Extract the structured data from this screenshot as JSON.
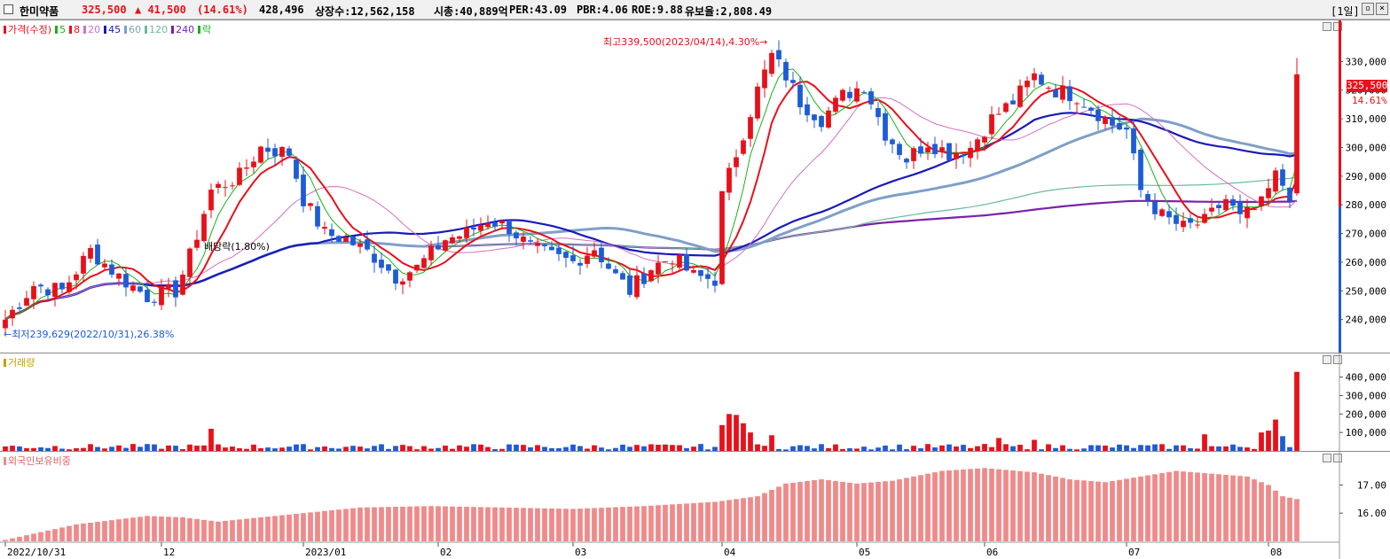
{
  "header": {
    "name": "한미약품",
    "price": "325,500",
    "change": "▲ 41,500",
    "change_pct": "(14.61%)",
    "volume": "428,496",
    "listed": "상장수:12,562,158",
    "mcap": "시총:40,889억",
    "per": "PER:43.09",
    "pbr": "PBR:4.06",
    "roe": "ROE:9.88",
    "reserve": "유보율:2,808.49",
    "period": "[1일]"
  },
  "colors": {
    "up": "#e8101a",
    "down": "#1e5bd6",
    "ma5": "#17b317",
    "ma8": "#e8101a",
    "ma20": "#d46fc4",
    "ma45": "#1a1ab8",
    "ma60": "#7f9fc8",
    "ma120": "#6cb9a0",
    "ma240": "#7a21a8",
    "volume": "#c8a000",
    "foreign": "#f08a8a"
  },
  "legend": [
    {
      "label": "가격(수정)",
      "color": "#e8101a"
    },
    {
      "label": "5",
      "color": "#17b317"
    },
    {
      "label": "8",
      "color": "#e8101a"
    },
    {
      "label": "20",
      "color": "#d46fc4"
    },
    {
      "label": "45",
      "color": "#1a1ab8"
    },
    {
      "label": "60",
      "color": "#7f9fc8"
    },
    {
      "label": "120",
      "color": "#6cb9a0"
    },
    {
      "label": "240",
      "color": "#7a21a8"
    },
    {
      "label": "락",
      "color": "#17b317"
    }
  ],
  "volume_label": "거래량",
  "foreign_label": "외국인보유비중",
  "annotations": {
    "high": "최고339,500(2023/04/14),4.30%→",
    "low": "←최저239,629(2022/10/31),26.38%",
    "dividend": "배당락(1.80%)"
  },
  "price_tag": {
    "price": "325,500",
    "pct": "14.61%"
  },
  "chart_data": {
    "type": "candlestick",
    "price_ylim": [
      230000,
      340000
    ],
    "price_ticks": [
      "240,000",
      "250,000",
      "260,000",
      "270,000",
      "280,000",
      "290,000",
      "300,000",
      "310,000",
      "320,000",
      "330,000"
    ],
    "volume_ylim": [
      0,
      480000
    ],
    "volume_ticks": [
      "100,000",
      "200,000",
      "300,000",
      "400,000"
    ],
    "foreign_ylim": [
      15.0,
      17.8
    ],
    "foreign_ticks": [
      "16.00",
      "17.00"
    ],
    "x_labels": [
      {
        "i": 0,
        "t": "2022/10/31"
      },
      {
        "i": 22,
        "t": "12"
      },
      {
        "i": 42,
        "t": "2023/01"
      },
      {
        "i": 61,
        "t": "02"
      },
      {
        "i": 80,
        "t": "03"
      },
      {
        "i": 101,
        "t": "04"
      },
      {
        "i": 120,
        "t": "05"
      },
      {
        "i": 138,
        "t": "06"
      },
      {
        "i": 158,
        "t": "07"
      },
      {
        "i": 178,
        "t": "08"
      }
    ],
    "n": 183,
    "close_keypoints": [
      [
        0,
        240000
      ],
      [
        4,
        252000
      ],
      [
        8,
        250000
      ],
      [
        12,
        264000
      ],
      [
        16,
        255000
      ],
      [
        20,
        248000
      ],
      [
        24,
        250000
      ],
      [
        26,
        262000
      ],
      [
        29,
        285000
      ],
      [
        33,
        290000
      ],
      [
        36,
        300000
      ],
      [
        40,
        298000
      ],
      [
        42,
        282000
      ],
      [
        45,
        270000
      ],
      [
        48,
        268000
      ],
      [
        52,
        262000
      ],
      [
        55,
        255000
      ],
      [
        58,
        258000
      ],
      [
        62,
        268000
      ],
      [
        65,
        270000
      ],
      [
        68,
        275000
      ],
      [
        71,
        272000
      ],
      [
        74,
        265000
      ],
      [
        77,
        262000
      ],
      [
        80,
        260000
      ],
      [
        83,
        265000
      ],
      [
        86,
        255000
      ],
      [
        88,
        250000
      ],
      [
        91,
        258000
      ],
      [
        94,
        262000
      ],
      [
        97,
        255000
      ],
      [
        100,
        254000
      ],
      [
        101,
        283000
      ],
      [
        103,
        298000
      ],
      [
        106,
        320000
      ],
      [
        108,
        332000
      ],
      [
        110,
        325000
      ],
      [
        112,
        316000
      ],
      [
        115,
        310000
      ],
      [
        118,
        318000
      ],
      [
        121,
        322000
      ],
      [
        124,
        305000
      ],
      [
        127,
        296000
      ],
      [
        130,
        302000
      ],
      [
        133,
        298000
      ],
      [
        136,
        300000
      ],
      [
        139,
        310000
      ],
      [
        142,
        316000
      ],
      [
        145,
        325000
      ],
      [
        148,
        320000
      ],
      [
        151,
        318000
      ],
      [
        154,
        312000
      ],
      [
        156,
        308000
      ],
      [
        158,
        306000
      ],
      [
        160,
        285000
      ],
      [
        163,
        276000
      ],
      [
        166,
        272000
      ],
      [
        169,
        274000
      ],
      [
        172,
        282000
      ],
      [
        174,
        275000
      ],
      [
        177,
        280000
      ],
      [
        179,
        290000
      ],
      [
        181,
        284000
      ],
      [
        182,
        325500
      ]
    ],
    "volume_spikes": [
      [
        29,
        120000
      ],
      [
        101,
        140000
      ],
      [
        102,
        200000
      ],
      [
        103,
        195000
      ],
      [
        104,
        150000
      ],
      [
        105,
        100000
      ],
      [
        108,
        85000
      ],
      [
        140,
        70000
      ],
      [
        145,
        60000
      ],
      [
        169,
        90000
      ],
      [
        177,
        100000
      ],
      [
        178,
        110000
      ],
      [
        179,
        170000
      ],
      [
        180,
        80000
      ],
      [
        182,
        428496
      ]
    ],
    "foreign_keypoints": [
      [
        0,
        15.05
      ],
      [
        10,
        15.6
      ],
      [
        20,
        15.9
      ],
      [
        25,
        15.85
      ],
      [
        30,
        15.7
      ],
      [
        40,
        15.95
      ],
      [
        50,
        16.2
      ],
      [
        60,
        16.25
      ],
      [
        70,
        16.2
      ],
      [
        80,
        16.15
      ],
      [
        90,
        16.25
      ],
      [
        100,
        16.4
      ],
      [
        106,
        16.6
      ],
      [
        110,
        17.05
      ],
      [
        115,
        17.2
      ],
      [
        120,
        17.05
      ],
      [
        125,
        17.15
      ],
      [
        132,
        17.5
      ],
      [
        138,
        17.6
      ],
      [
        145,
        17.45
      ],
      [
        150,
        17.2
      ],
      [
        155,
        17.1
      ],
      [
        160,
        17.3
      ],
      [
        165,
        17.5
      ],
      [
        170,
        17.4
      ],
      [
        175,
        17.3
      ],
      [
        178,
        17.0
      ],
      [
        180,
        16.6
      ],
      [
        182,
        16.5
      ]
    ]
  }
}
